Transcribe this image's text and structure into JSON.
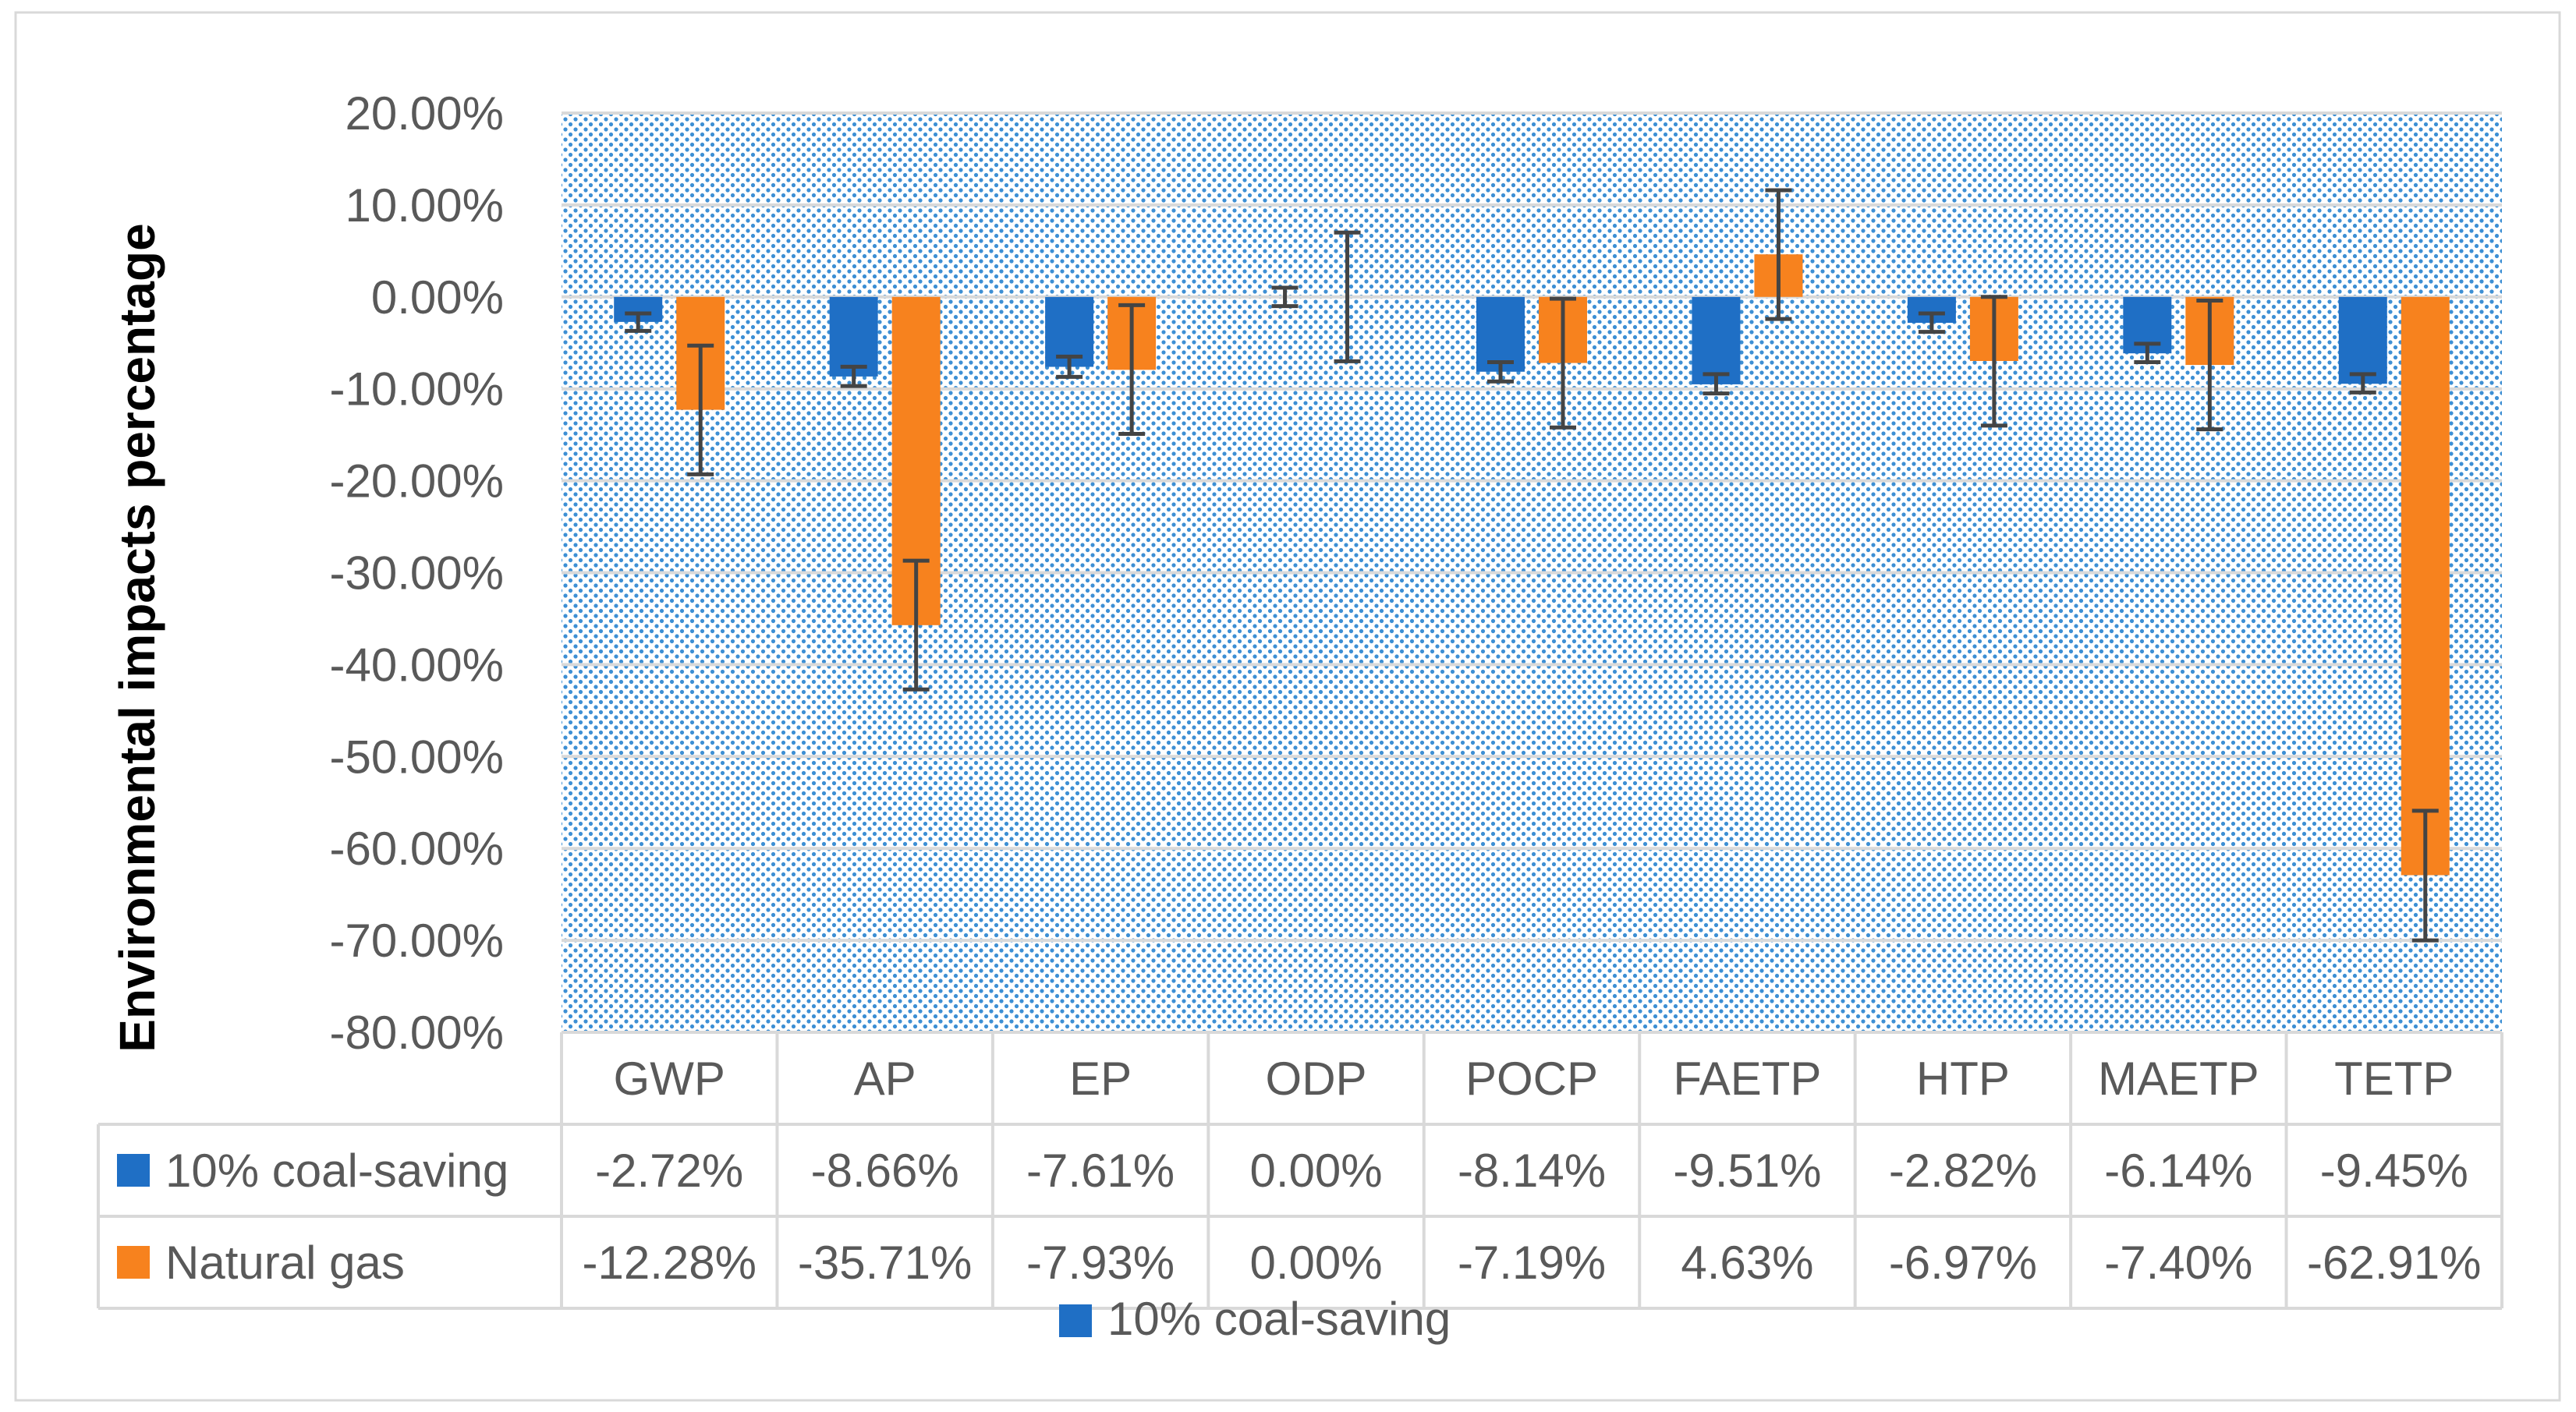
{
  "chart_data": {
    "type": "bar",
    "title": "",
    "xlabel": "",
    "ylabel": "Environmental impacts percentage",
    "ylim": [
      -80,
      20
    ],
    "ytick_step": 10,
    "ytick_labels": [
      "20.00%",
      "10.00%",
      "0.00%",
      "-10.00%",
      "-20.00%",
      "-30.00%",
      "-40.00%",
      "-50.00%",
      "-60.00%",
      "-70.00%",
      "-80.00%"
    ],
    "grid": true,
    "categories": [
      "GWP",
      "AP",
      "EP",
      "ODP",
      "POCP",
      "FAETP",
      "HTP",
      "MAETP",
      "TETP"
    ],
    "series": [
      {
        "name": "10% coal-saving",
        "color": "#1f6fc5",
        "values": [
          -2.72,
          -8.66,
          -7.61,
          0.0,
          -8.14,
          -9.51,
          -2.82,
          -6.14,
          -9.45
        ],
        "value_labels": [
          "-2.72%",
          "-8.66%",
          "-7.61%",
          "0.00%",
          "-8.14%",
          "-9.51%",
          "-2.82%",
          "-6.14%",
          "-9.45%"
        ],
        "error_low": [
          -3.7,
          -9.7,
          -8.7,
          -1.0,
          -9.2,
          -10.5,
          -3.8,
          -7.1,
          -10.4
        ],
        "error_high": [
          -1.8,
          -7.6,
          -6.5,
          1.0,
          -7.1,
          -8.4,
          -1.8,
          -5.1,
          -8.4
        ]
      },
      {
        "name": "Natural gas",
        "color": "#f7821e",
        "values": [
          -12.28,
          -35.71,
          -7.93,
          0.0,
          -7.19,
          4.63,
          -6.97,
          -7.4,
          -62.91
        ],
        "value_labels": [
          "-12.28%",
          "-35.71%",
          "-7.93%",
          "0.00%",
          "-7.19%",
          "4.63%",
          "-6.97%",
          "-7.40%",
          "-62.91%"
        ],
        "error_low": [
          -19.3,
          -42.7,
          -14.9,
          -7.0,
          -14.2,
          -2.4,
          -14.0,
          -14.4,
          -70.0
        ],
        "error_high": [
          -5.3,
          -28.7,
          -0.9,
          7.0,
          -0.2,
          11.6,
          0.0,
          -0.4,
          -55.9
        ]
      }
    ],
    "legend_below": "10% coal-saving",
    "colors": {
      "plot_background": "#ffffff",
      "dot_pattern": "#3d8fd4",
      "gridline": "#d9d9d9",
      "axis_text": "#595959",
      "ylabel_text": "#000000",
      "error_bar": "#444444",
      "table_border": "#d9d9d9",
      "frame_border": "#d9d9d9"
    }
  }
}
